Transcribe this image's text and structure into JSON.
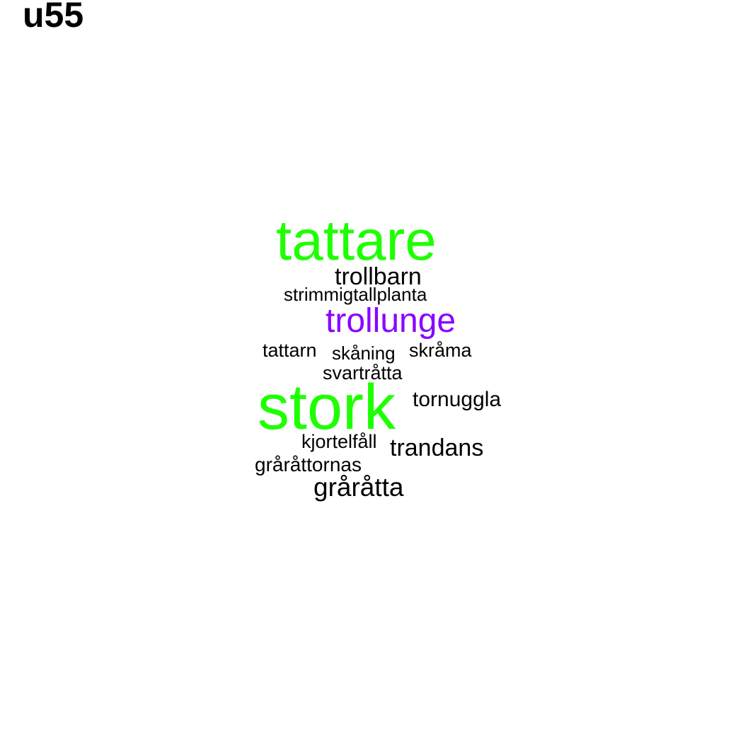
{
  "title": "u55",
  "colors": {
    "green": "#1eff00",
    "purple": "#8a00ff",
    "black": "#000000",
    "background": "#ffffff"
  },
  "words": [
    {
      "text": "tattare",
      "color": "#1eff00"
    },
    {
      "text": "trollbarn",
      "color": "#000000"
    },
    {
      "text": "strimmigtallplanta",
      "color": "#000000"
    },
    {
      "text": "trollunge",
      "color": "#8a00ff"
    },
    {
      "text": "tattarn",
      "color": "#000000"
    },
    {
      "text": "skåning",
      "color": "#000000"
    },
    {
      "text": "skråma",
      "color": "#000000"
    },
    {
      "text": "svartråtta",
      "color": "#000000"
    },
    {
      "text": "stork",
      "color": "#1eff00"
    },
    {
      "text": "tornuggla",
      "color": "#000000"
    },
    {
      "text": "kjortelfåll",
      "color": "#000000"
    },
    {
      "text": "trandans",
      "color": "#000000"
    },
    {
      "text": "gråråttornas",
      "color": "#000000"
    },
    {
      "text": "gråråtta",
      "color": "#000000"
    }
  ]
}
